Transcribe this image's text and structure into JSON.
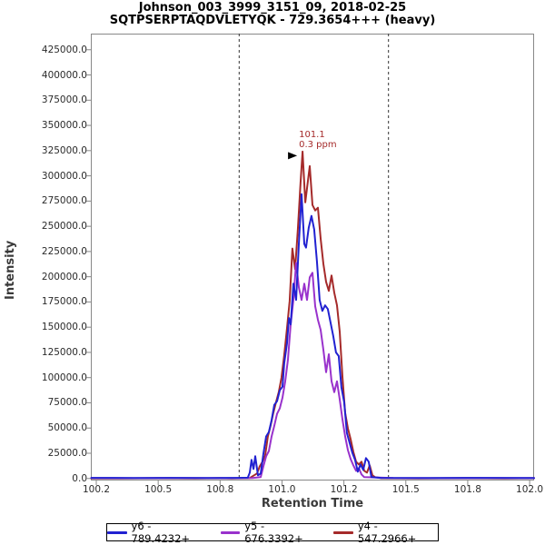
{
  "title": {
    "line1": "Johnson_003_3999_3151_09, 2018-02-25",
    "line2": "SQTPSERPTAQDVLETYQK - 729.3654+++ (heavy)"
  },
  "colors": {
    "plot_border": "#888888",
    "tick": "#888888",
    "boundary_line": "#333333",
    "annotation": "#A52A2A",
    "arrow": "#000000",
    "y6": "#2121D1",
    "y5": "#9932CC",
    "y4": "#A52A2A"
  },
  "legend": {
    "items": [
      {
        "id": "y6",
        "label": "y6 - 789.4232+",
        "color": "#2121D1"
      },
      {
        "id": "y5",
        "label": "y5 - 676.3392+",
        "color": "#9932CC"
      },
      {
        "id": "y4",
        "label": "y4 - 547.2966+",
        "color": "#A52A2A"
      }
    ]
  },
  "chart_data": {
    "type": "line",
    "title": "Johnson_003_3999_3151_09, 2018-02-25 / SQTPSERPTAQDVLETYQK - 729.3654+++ (heavy)",
    "xlabel": "Retention Time",
    "ylabel": "Intensity",
    "xlim": [
      100.228,
      102.018
    ],
    "ylim": [
      -2000,
      441000
    ],
    "grid": false,
    "legend_position": "bottom",
    "x_ticks": {
      "values": [
        100.25,
        100.5,
        100.75,
        101.0,
        101.25,
        101.5,
        101.75,
        102.0
      ],
      "labels": [
        "100.2",
        "100.5",
        "100.8",
        "101.0",
        "101.2",
        "101.5",
        "101.8",
        "102.0"
      ]
    },
    "y_ticks": {
      "values": [
        0,
        25000,
        50000,
        75000,
        100000,
        125000,
        150000,
        175000,
        200000,
        225000,
        250000,
        275000,
        300000,
        325000,
        350000,
        375000,
        400000,
        425000
      ],
      "labels": [
        "0.0",
        "25000.0",
        "50000.0",
        "75000.0",
        "100000.0",
        "125000.0",
        "150000.0",
        "175000.0",
        "200000.0",
        "225000.0",
        "250000.0",
        "275000.0",
        "300000.0",
        "325000.0",
        "350000.0",
        "375000.0",
        "400000.0",
        "425000.0"
      ]
    },
    "peak_boundaries": [
      100.827,
      101.43
    ],
    "annotation": {
      "line1": "101.1",
      "line2": "0.3 ppm",
      "arrow_t": 101.061,
      "arrow_v": 320000
    },
    "series": [
      {
        "name": "y6 - 789.4232+",
        "color": "#2121D1",
        "points": [
          [
            100.23,
            600
          ],
          [
            100.4,
            500
          ],
          [
            100.55,
            600
          ],
          [
            100.7,
            500
          ],
          [
            100.82,
            600
          ],
          [
            100.862,
            800
          ],
          [
            100.87,
            5800
          ],
          [
            100.877,
            18400
          ],
          [
            100.885,
            9400
          ],
          [
            100.892,
            22000
          ],
          [
            100.903,
            3100
          ],
          [
            100.914,
            4900
          ],
          [
            100.925,
            24600
          ],
          [
            100.936,
            41700
          ],
          [
            100.947,
            46100
          ],
          [
            100.958,
            57800
          ],
          [
            100.969,
            73000
          ],
          [
            100.98,
            76600
          ],
          [
            100.991,
            87400
          ],
          [
            101.002,
            91000
          ],
          [
            101.009,
            114200
          ],
          [
            101.02,
            133500
          ],
          [
            101.028,
            159100
          ],
          [
            101.035,
            152800
          ],
          [
            101.046,
            193100
          ],
          [
            101.057,
            177000
          ],
          [
            101.068,
            232500
          ],
          [
            101.079,
            281800
          ],
          [
            101.09,
            232500
          ],
          [
            101.097,
            228900
          ],
          [
            101.108,
            248700
          ],
          [
            101.119,
            260300
          ],
          [
            101.13,
            246900
          ],
          [
            101.141,
            215500
          ],
          [
            101.152,
            177000
          ],
          [
            101.163,
            166200
          ],
          [
            101.174,
            171600
          ],
          [
            101.185,
            168000
          ],
          [
            101.196,
            154600
          ],
          [
            101.207,
            141100
          ],
          [
            101.218,
            125000
          ],
          [
            101.229,
            121400
          ],
          [
            101.24,
            90100
          ],
          [
            101.251,
            75700
          ],
          [
            101.262,
            45200
          ],
          [
            101.273,
            35400
          ],
          [
            101.284,
            25500
          ],
          [
            101.295,
            18400
          ],
          [
            101.306,
            6700
          ],
          [
            101.317,
            13900
          ],
          [
            101.328,
            8500
          ],
          [
            101.339,
            20200
          ],
          [
            101.35,
            16600
          ],
          [
            101.361,
            1300
          ],
          [
            101.4,
            600
          ],
          [
            101.6,
            500
          ],
          [
            101.8,
            600
          ],
          [
            102.018,
            500
          ]
        ]
      },
      {
        "name": "y5 - 676.3392+",
        "color": "#9932CC",
        "points": [
          [
            100.23,
            400
          ],
          [
            100.45,
            300
          ],
          [
            100.6,
            400
          ],
          [
            100.75,
            300
          ],
          [
            100.88,
            400
          ],
          [
            100.914,
            1300
          ],
          [
            100.925,
            12100
          ],
          [
            100.936,
            22000
          ],
          [
            100.947,
            27300
          ],
          [
            100.958,
            41700
          ],
          [
            100.969,
            52400
          ],
          [
            100.98,
            64100
          ],
          [
            100.991,
            69500
          ],
          [
            101.002,
            80200
          ],
          [
            101.013,
            96300
          ],
          [
            101.024,
            117800
          ],
          [
            101.035,
            152800
          ],
          [
            101.046,
            177000
          ],
          [
            101.057,
            213700
          ],
          [
            101.068,
            189500
          ],
          [
            101.079,
            177000
          ],
          [
            101.09,
            193100
          ],
          [
            101.101,
            177000
          ],
          [
            101.112,
            199400
          ],
          [
            101.123,
            203900
          ],
          [
            101.134,
            170700
          ],
          [
            101.145,
            157300
          ],
          [
            101.156,
            147400
          ],
          [
            101.167,
            127700
          ],
          [
            101.178,
            105300
          ],
          [
            101.189,
            123200
          ],
          [
            101.2,
            96300
          ],
          [
            101.211,
            85600
          ],
          [
            101.222,
            96300
          ],
          [
            101.233,
            78400
          ],
          [
            101.244,
            58700
          ],
          [
            101.255,
            41700
          ],
          [
            101.266,
            28200
          ],
          [
            101.277,
            19300
          ],
          [
            101.288,
            13000
          ],
          [
            101.299,
            7600
          ],
          [
            101.31,
            10300
          ],
          [
            101.321,
            4000
          ],
          [
            101.332,
            1300
          ],
          [
            101.45,
            400
          ],
          [
            101.65,
            300
          ],
          [
            101.85,
            400
          ],
          [
            102.018,
            300
          ]
        ]
      },
      {
        "name": "y4 - 547.2966+",
        "color": "#A52A2A",
        "points": [
          [
            100.23,
            200
          ],
          [
            100.35,
            200
          ],
          [
            100.5,
            300
          ],
          [
            100.65,
            200
          ],
          [
            100.75,
            300
          ],
          [
            100.8,
            200
          ],
          [
            100.84,
            300
          ],
          [
            100.87,
            500
          ],
          [
            100.899,
            4900
          ],
          [
            100.91,
            12000
          ],
          [
            100.921,
            16500
          ],
          [
            100.932,
            22800
          ],
          [
            100.943,
            41700
          ],
          [
            100.954,
            52400
          ],
          [
            100.965,
            65000
          ],
          [
            100.976,
            75700
          ],
          [
            100.987,
            85600
          ],
          [
            100.998,
            99900
          ],
          [
            101.009,
            122300
          ],
          [
            101.02,
            148300
          ],
          [
            101.031,
            176100
          ],
          [
            101.042,
            228000
          ],
          [
            101.053,
            207400
          ],
          [
            101.064,
            246900
          ],
          [
            101.075,
            293500
          ],
          [
            101.083,
            324000
          ],
          [
            101.094,
            273700
          ],
          [
            101.112,
            309600
          ],
          [
            101.123,
            271100
          ],
          [
            101.134,
            265700
          ],
          [
            101.145,
            268400
          ],
          [
            101.156,
            237900
          ],
          [
            101.167,
            212800
          ],
          [
            101.178,
            194900
          ],
          [
            101.189,
            186000
          ],
          [
            101.2,
            201200
          ],
          [
            101.211,
            184200
          ],
          [
            101.222,
            171600
          ],
          [
            101.233,
            145600
          ],
          [
            101.244,
            100800
          ],
          [
            101.255,
            65000
          ],
          [
            101.266,
            49700
          ],
          [
            101.277,
            39000
          ],
          [
            101.288,
            26400
          ],
          [
            101.299,
            16600
          ],
          [
            101.31,
            13900
          ],
          [
            101.321,
            16600
          ],
          [
            101.332,
            7600
          ],
          [
            101.343,
            5800
          ],
          [
            101.354,
            13000
          ],
          [
            101.365,
            3100
          ],
          [
            101.376,
            1300
          ],
          [
            101.4,
            300
          ],
          [
            101.55,
            200
          ],
          [
            101.75,
            300
          ],
          [
            101.9,
            200
          ],
          [
            102.018,
            300
          ]
        ]
      }
    ]
  }
}
